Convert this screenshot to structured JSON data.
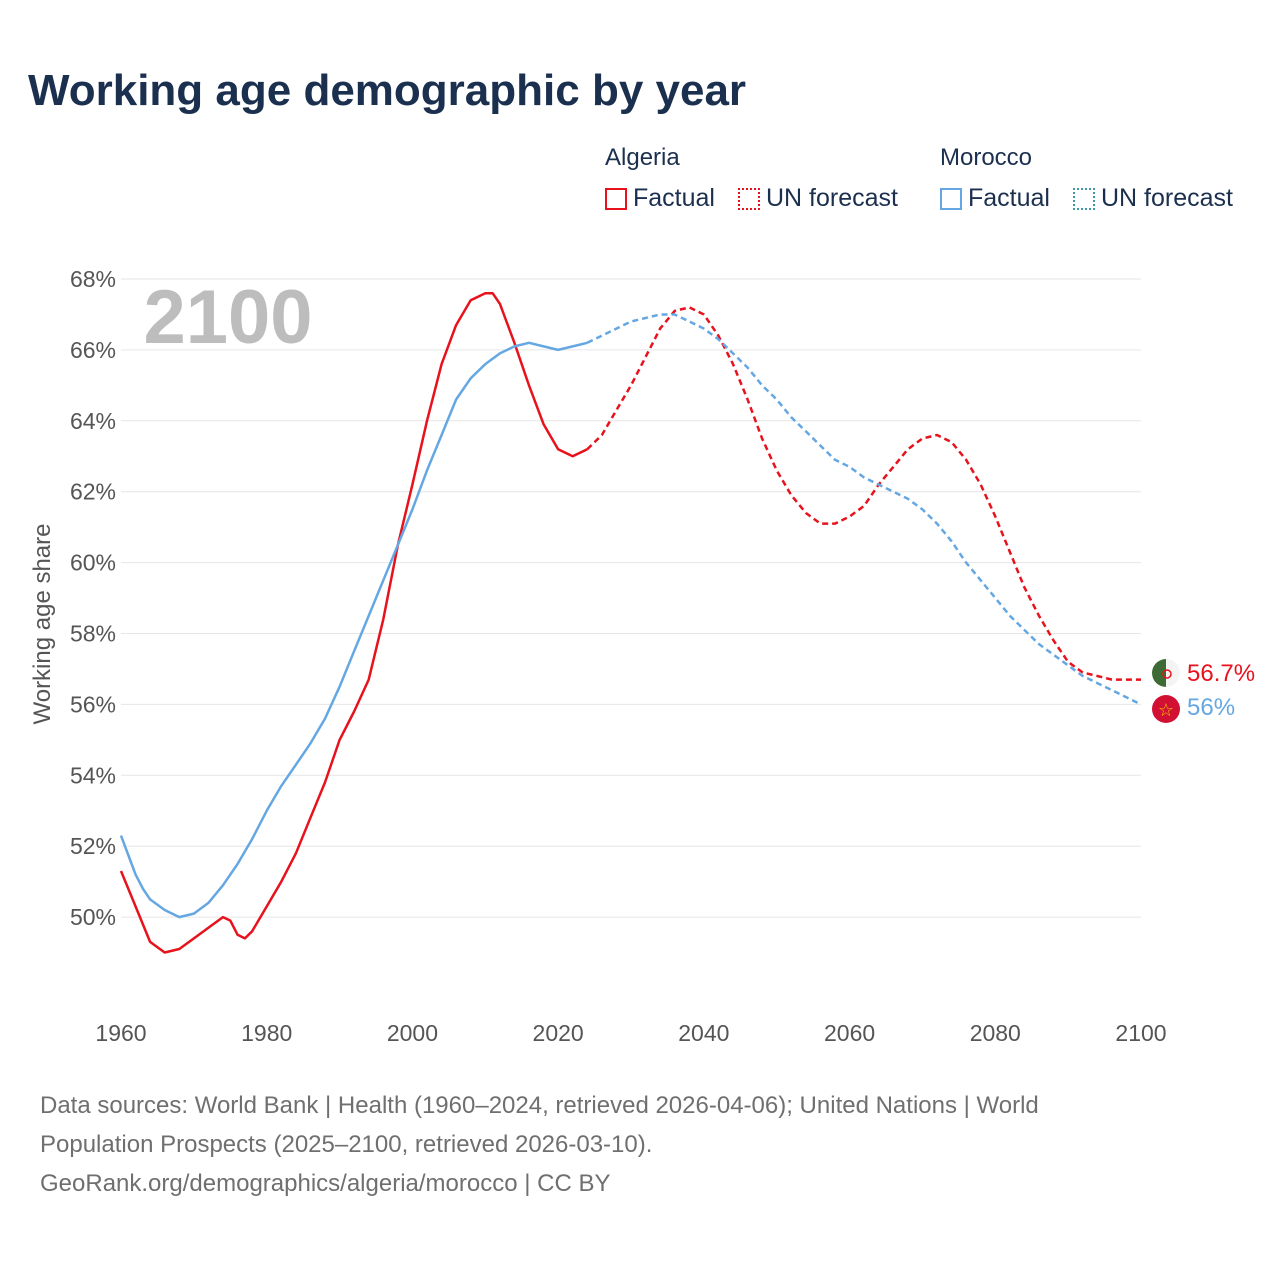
{
  "title": "Working age demographic by year",
  "year_watermark": "2100",
  "legend": {
    "groups": [
      {
        "name": "Algeria",
        "color": "#e8121c",
        "factual_label": "Factual",
        "forecast_label": "UN forecast"
      },
      {
        "name": "Morocco",
        "color": "#65a7e2",
        "factual_label": "Factual",
        "forecast_label": "UN forecast"
      }
    ]
  },
  "end_labels": {
    "algeria": "56.7%",
    "morocco": "56%"
  },
  "sources": {
    "line1": "Data sources: World Bank | Health (1960–2024, retrieved 2026-04-06); United Nations | World",
    "line2": "Population Prospects (2025–2100, retrieved 2026-03-10).",
    "line3": "GeoRank.org/demographics/algeria/morocco | CC BY"
  },
  "chart_data": {
    "type": "line",
    "ylabel": "Working age share",
    "xlabel": "",
    "xlim": [
      1960,
      2100
    ],
    "ylim": [
      48,
      68
    ],
    "x_ticks": [
      1960,
      1980,
      2000,
      2020,
      2040,
      2060,
      2080,
      2100
    ],
    "y_ticks": [
      50,
      52,
      54,
      56,
      58,
      60,
      62,
      64,
      66,
      68
    ],
    "y_tick_labels": [
      "50%",
      "52%",
      "54%",
      "56%",
      "58%",
      "60%",
      "62%",
      "64%",
      "66%",
      "68%"
    ],
    "factual_end_year": 2024,
    "series": [
      {
        "name": "Algeria",
        "color": "#e8121c",
        "points": [
          [
            1960,
            51.3
          ],
          [
            1962,
            50.3
          ],
          [
            1964,
            49.3
          ],
          [
            1966,
            49.0
          ],
          [
            1968,
            49.1
          ],
          [
            1970,
            49.4
          ],
          [
            1972,
            49.7
          ],
          [
            1974,
            50.0
          ],
          [
            1975,
            49.9
          ],
          [
            1976,
            49.5
          ],
          [
            1977,
            49.4
          ],
          [
            1978,
            49.6
          ],
          [
            1980,
            50.3
          ],
          [
            1982,
            51.0
          ],
          [
            1984,
            51.8
          ],
          [
            1986,
            52.8
          ],
          [
            1988,
            53.8
          ],
          [
            1990,
            55.0
          ],
          [
            1992,
            55.8
          ],
          [
            1994,
            56.7
          ],
          [
            1996,
            58.4
          ],
          [
            1998,
            60.5
          ],
          [
            2000,
            62.2
          ],
          [
            2002,
            64.0
          ],
          [
            2004,
            65.6
          ],
          [
            2006,
            66.7
          ],
          [
            2008,
            67.4
          ],
          [
            2010,
            67.6
          ],
          [
            2011,
            67.6
          ],
          [
            2012,
            67.3
          ],
          [
            2014,
            66.2
          ],
          [
            2016,
            65.0
          ],
          [
            2018,
            63.9
          ],
          [
            2020,
            63.2
          ],
          [
            2022,
            63.0
          ],
          [
            2024,
            63.2
          ],
          [
            2026,
            63.6
          ],
          [
            2028,
            64.3
          ],
          [
            2030,
            65.0
          ],
          [
            2032,
            65.8
          ],
          [
            2034,
            66.6
          ],
          [
            2036,
            67.1
          ],
          [
            2038,
            67.2
          ],
          [
            2040,
            67.0
          ],
          [
            2042,
            66.4
          ],
          [
            2044,
            65.6
          ],
          [
            2046,
            64.6
          ],
          [
            2048,
            63.5
          ],
          [
            2050,
            62.6
          ],
          [
            2052,
            61.9
          ],
          [
            2054,
            61.4
          ],
          [
            2056,
            61.1
          ],
          [
            2058,
            61.1
          ],
          [
            2060,
            61.3
          ],
          [
            2062,
            61.6
          ],
          [
            2064,
            62.2
          ],
          [
            2066,
            62.7
          ],
          [
            2068,
            63.2
          ],
          [
            2070,
            63.5
          ],
          [
            2072,
            63.6
          ],
          [
            2074,
            63.4
          ],
          [
            2076,
            62.9
          ],
          [
            2078,
            62.2
          ],
          [
            2080,
            61.3
          ],
          [
            2082,
            60.3
          ],
          [
            2084,
            59.3
          ],
          [
            2086,
            58.5
          ],
          [
            2088,
            57.8
          ],
          [
            2090,
            57.2
          ],
          [
            2092,
            56.9
          ],
          [
            2094,
            56.8
          ],
          [
            2096,
            56.7
          ],
          [
            2100,
            56.7
          ]
        ]
      },
      {
        "name": "Morocco",
        "color": "#65a7e2",
        "points": [
          [
            1960,
            52.3
          ],
          [
            1962,
            51.2
          ],
          [
            1963,
            50.8
          ],
          [
            1964,
            50.5
          ],
          [
            1966,
            50.2
          ],
          [
            1968,
            50.0
          ],
          [
            1970,
            50.1
          ],
          [
            1972,
            50.4
          ],
          [
            1974,
            50.9
          ],
          [
            1976,
            51.5
          ],
          [
            1978,
            52.2
          ],
          [
            1980,
            53.0
          ],
          [
            1982,
            53.7
          ],
          [
            1984,
            54.3
          ],
          [
            1986,
            54.9
          ],
          [
            1988,
            55.6
          ],
          [
            1990,
            56.5
          ],
          [
            1992,
            57.5
          ],
          [
            1994,
            58.5
          ],
          [
            1996,
            59.5
          ],
          [
            1998,
            60.5
          ],
          [
            2000,
            61.5
          ],
          [
            2002,
            62.6
          ],
          [
            2004,
            63.6
          ],
          [
            2006,
            64.6
          ],
          [
            2008,
            65.2
          ],
          [
            2010,
            65.6
          ],
          [
            2012,
            65.9
          ],
          [
            2014,
            66.1
          ],
          [
            2016,
            66.2
          ],
          [
            2018,
            66.1
          ],
          [
            2020,
            66.0
          ],
          [
            2022,
            66.1
          ],
          [
            2024,
            66.2
          ],
          [
            2026,
            66.4
          ],
          [
            2028,
            66.6
          ],
          [
            2030,
            66.8
          ],
          [
            2032,
            66.9
          ],
          [
            2034,
            67.0
          ],
          [
            2036,
            67.0
          ],
          [
            2038,
            66.8
          ],
          [
            2040,
            66.6
          ],
          [
            2042,
            66.3
          ],
          [
            2044,
            65.9
          ],
          [
            2046,
            65.5
          ],
          [
            2048,
            65.0
          ],
          [
            2050,
            64.6
          ],
          [
            2052,
            64.1
          ],
          [
            2054,
            63.7
          ],
          [
            2056,
            63.3
          ],
          [
            2058,
            62.9
          ],
          [
            2060,
            62.7
          ],
          [
            2062,
            62.4
          ],
          [
            2064,
            62.2
          ],
          [
            2066,
            62.0
          ],
          [
            2068,
            61.8
          ],
          [
            2070,
            61.5
          ],
          [
            2072,
            61.1
          ],
          [
            2074,
            60.6
          ],
          [
            2076,
            60.0
          ],
          [
            2078,
            59.5
          ],
          [
            2080,
            59.0
          ],
          [
            2082,
            58.5
          ],
          [
            2084,
            58.1
          ],
          [
            2086,
            57.7
          ],
          [
            2088,
            57.4
          ],
          [
            2090,
            57.1
          ],
          [
            2092,
            56.8
          ],
          [
            2094,
            56.6
          ],
          [
            2096,
            56.4
          ],
          [
            2098,
            56.2
          ],
          [
            2100,
            56.0
          ]
        ]
      }
    ]
  }
}
